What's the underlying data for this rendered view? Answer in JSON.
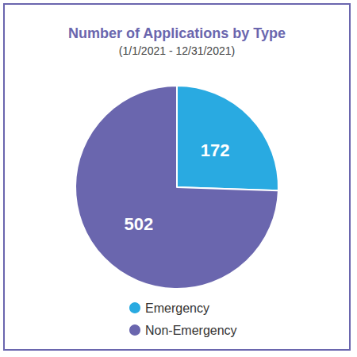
{
  "chart_data": {
    "type": "pie",
    "title": "Number of Applications by Type",
    "subtitle": "(1/1/2021 - 12/31/2021)",
    "categories": [
      "Emergency",
      "Non-Emergency"
    ],
    "values": [
      172,
      502
    ],
    "colors": [
      "#29aae1",
      "#6a66ae"
    ],
    "data_labels": true,
    "legend": "bottom"
  }
}
